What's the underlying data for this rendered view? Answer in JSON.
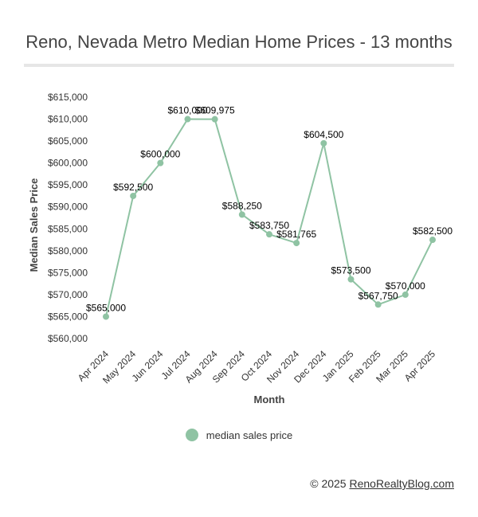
{
  "chart_title": "Reno, Nevada Metro Median Home Prices - 13 months",
  "chart_data": {
    "type": "line",
    "title": "Reno, Nevada Metro Median Home Prices - 13 months",
    "xlabel": "Month",
    "ylabel": "Median Sales Price",
    "categories": [
      "Apr 2024",
      "May 2024",
      "Jun 2024",
      "Jul 2024",
      "Aug 2024",
      "Sep 2024",
      "Oct 2024",
      "Nov 2024",
      "Dec 2024",
      "Jan 2025",
      "Feb 2025",
      "Mar 2025",
      "Apr 2025"
    ],
    "series": [
      {
        "name": "median sales price",
        "values": [
          565000,
          592500,
          600000,
          610000,
          609975,
          588250,
          583750,
          581765,
          604500,
          573500,
          567750,
          570000,
          582500
        ],
        "data_labels": [
          "$565,000",
          "$592,500",
          "$600,000",
          "$610,000",
          "$609,975",
          "$588,250",
          "$583,750",
          "$581,765",
          "$604,500",
          "$573,500",
          "$567,750",
          "$570,000",
          "$582,500"
        ],
        "color": "#8fc3a3"
      }
    ],
    "ylim": [
      560000,
      615000
    ],
    "yticks": [
      560000,
      565000,
      570000,
      575000,
      580000,
      585000,
      590000,
      595000,
      600000,
      605000,
      610000,
      615000
    ],
    "ytick_labels": [
      "$560,000",
      "$565,000",
      "$570,000",
      "$575,000",
      "$580,000",
      "$585,000",
      "$590,000",
      "$595,000",
      "$600,000",
      "$605,000",
      "$610,000",
      "$615,000"
    ],
    "grid": false,
    "legend_position": "bottom"
  },
  "legend": {
    "label": "median sales price",
    "color": "#8fc3a3"
  },
  "footer": {
    "prefix": "© 2025 ",
    "link_text": "RenoRealtyBlog.com"
  }
}
